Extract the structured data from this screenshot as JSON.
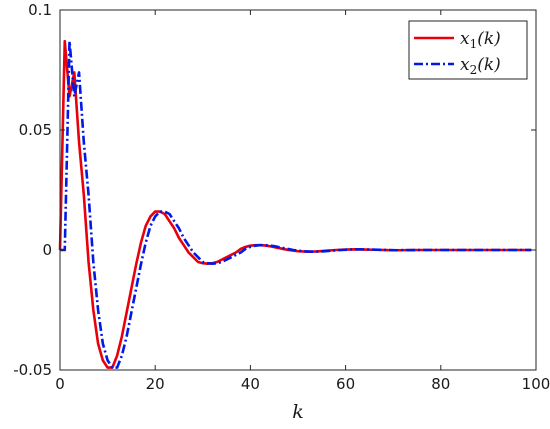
{
  "chart_data": {
    "type": "line",
    "xlabel": "k",
    "ylabel": "",
    "title": "",
    "xlim": [
      0,
      100
    ],
    "ylim": [
      -0.05,
      0.1
    ],
    "x_ticks": [
      0,
      20,
      40,
      60,
      80,
      100
    ],
    "x_tick_labels": [
      "0",
      "20",
      "40",
      "60",
      "80",
      "100"
    ],
    "y_ticks": [
      -0.05,
      0,
      0.05,
      0.1
    ],
    "y_tick_labels": [
      "-0.05",
      "0",
      "0.05",
      "0.1"
    ],
    "grid": false,
    "legend_position": "top-right",
    "series": [
      {
        "name": "x1(k)",
        "legend_base": "x",
        "legend_sub": "1",
        "legend_arg": "(k)",
        "color": "#e8000b",
        "style": "solid",
        "points": [
          [
            0,
            0
          ],
          [
            1,
            0.087
          ],
          [
            2,
            0.064
          ],
          [
            3,
            0.074
          ],
          [
            4,
            0.045
          ],
          [
            5,
            0.023
          ],
          [
            6,
            -0.005
          ],
          [
            7,
            -0.025
          ],
          [
            8,
            -0.039
          ],
          [
            9,
            -0.046
          ],
          [
            10,
            -0.049
          ],
          [
            11,
            -0.049
          ],
          [
            12,
            -0.044
          ],
          [
            13,
            -0.036
          ],
          [
            14,
            -0.026
          ],
          [
            15,
            -0.016
          ],
          [
            16,
            -0.006
          ],
          [
            17,
            0.003
          ],
          [
            18,
            0.01
          ],
          [
            19,
            0.014
          ],
          [
            20,
            0.016
          ],
          [
            21,
            0.016
          ],
          [
            22,
            0.015
          ],
          [
            23,
            0.012
          ],
          [
            24,
            0.009
          ],
          [
            25,
            0.005
          ],
          [
            26,
            0.002
          ],
          [
            27,
            -0.001
          ],
          [
            28,
            -0.003
          ],
          [
            29,
            -0.005
          ],
          [
            30,
            -0.0055
          ],
          [
            31,
            -0.0057
          ],
          [
            32,
            -0.0055
          ],
          [
            33,
            -0.005
          ],
          [
            34,
            -0.004
          ],
          [
            35,
            -0.003
          ],
          [
            36,
            -0.002
          ],
          [
            37,
            -0.001
          ],
          [
            38,
            0.0005
          ],
          [
            39,
            0.0013
          ],
          [
            40,
            0.0018
          ],
          [
            41,
            0.002
          ],
          [
            42,
            0.002
          ],
          [
            43,
            0.0019
          ],
          [
            44,
            0.0016
          ],
          [
            45,
            0.0012
          ],
          [
            46,
            0.0008
          ],
          [
            47,
            0.0004
          ],
          [
            48,
            0
          ],
          [
            50,
            -0.0005
          ],
          [
            52,
            -0.0007
          ],
          [
            54,
            -0.0006
          ],
          [
            56,
            -0.0003
          ],
          [
            58,
            0
          ],
          [
            60,
            0.0002
          ],
          [
            62,
            0.0003
          ],
          [
            64,
            0.0002
          ],
          [
            66,
            0.0001
          ],
          [
            70,
            -0.0001
          ],
          [
            75,
            0
          ],
          [
            80,
            0
          ],
          [
            90,
            0
          ],
          [
            99,
            0
          ]
        ]
      },
      {
        "name": "x2(k)",
        "legend_base": "x",
        "legend_sub": "2",
        "legend_arg": "(k)",
        "color": "#0019e6",
        "style": "dashdot",
        "points": [
          [
            0,
            0
          ],
          [
            1,
            0
          ],
          [
            2,
            0.087
          ],
          [
            3,
            0.064
          ],
          [
            4,
            0.074
          ],
          [
            5,
            0.045
          ],
          [
            6,
            0.023
          ],
          [
            7,
            -0.005
          ],
          [
            8,
            -0.025
          ],
          [
            9,
            -0.039
          ],
          [
            10,
            -0.046
          ],
          [
            11,
            -0.049
          ],
          [
            12,
            -0.049
          ],
          [
            13,
            -0.044
          ],
          [
            14,
            -0.036
          ],
          [
            15,
            -0.026
          ],
          [
            16,
            -0.016
          ],
          [
            17,
            -0.006
          ],
          [
            18,
            0.003
          ],
          [
            19,
            0.01
          ],
          [
            20,
            0.014
          ],
          [
            21,
            0.016
          ],
          [
            22,
            0.016
          ],
          [
            23,
            0.015
          ],
          [
            24,
            0.012
          ],
          [
            25,
            0.009
          ],
          [
            26,
            0.005
          ],
          [
            27,
            0.002
          ],
          [
            28,
            -0.001
          ],
          [
            29,
            -0.003
          ],
          [
            30,
            -0.005
          ],
          [
            31,
            -0.0055
          ],
          [
            32,
            -0.0057
          ],
          [
            33,
            -0.0055
          ],
          [
            34,
            -0.005
          ],
          [
            35,
            -0.004
          ],
          [
            36,
            -0.003
          ],
          [
            37,
            -0.002
          ],
          [
            38,
            -0.001
          ],
          [
            39,
            0.0005
          ],
          [
            40,
            0.0013
          ],
          [
            41,
            0.0018
          ],
          [
            42,
            0.002
          ],
          [
            43,
            0.002
          ],
          [
            44,
            0.0019
          ],
          [
            45,
            0.0016
          ],
          [
            46,
            0.0012
          ],
          [
            47,
            0.0008
          ],
          [
            48,
            0.0004
          ],
          [
            49,
            0
          ],
          [
            51,
            -0.0005
          ],
          [
            53,
            -0.0007
          ],
          [
            55,
            -0.0006
          ],
          [
            57,
            -0.0003
          ],
          [
            59,
            0
          ],
          [
            61,
            0.0002
          ],
          [
            63,
            0.0003
          ],
          [
            65,
            0.0002
          ],
          [
            67,
            0.0001
          ],
          [
            71,
            -0.0001
          ],
          [
            76,
            0
          ],
          [
            80,
            0
          ],
          [
            90,
            0
          ],
          [
            99,
            0
          ]
        ]
      }
    ]
  }
}
